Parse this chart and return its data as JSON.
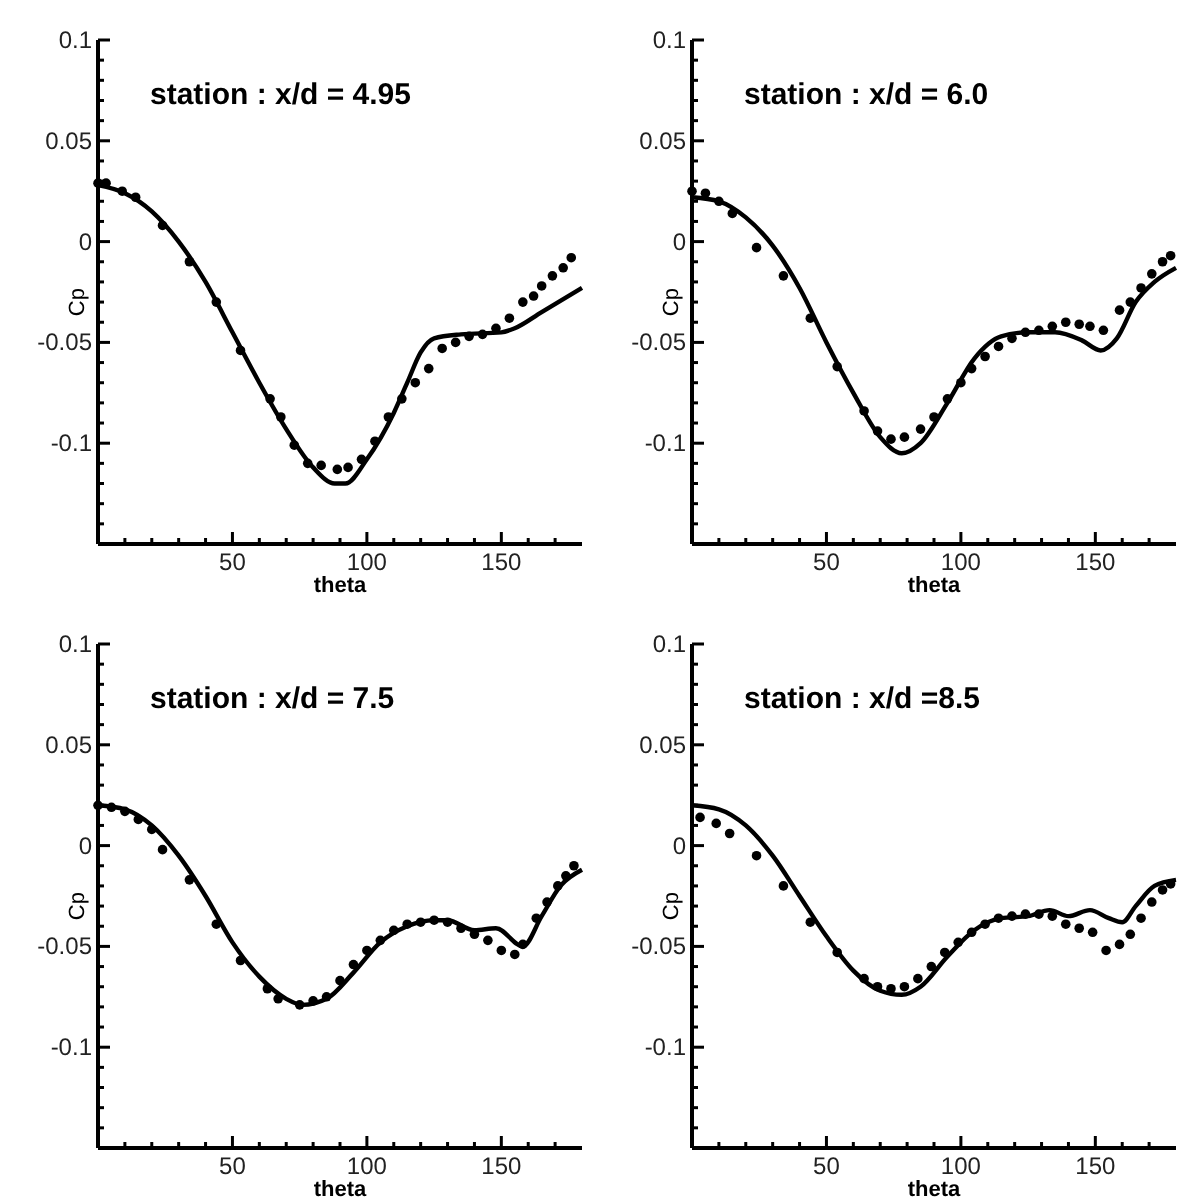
{
  "chart_data": [
    {
      "type": "line",
      "title": "station : x/d = 4.95",
      "xlabel": "theta",
      "ylabel": "Cp",
      "xlim": [
        0,
        180
      ],
      "ylim": [
        -0.15,
        0.1
      ],
      "xticks": [
        {
          "value": 10,
          "label": null
        },
        {
          "value": 20,
          "label": null
        },
        {
          "value": 30,
          "label": null
        },
        {
          "value": 40,
          "label": null
        },
        50,
        {
          "value": 60,
          "label": null
        },
        {
          "value": 70,
          "label": null
        },
        {
          "value": 80,
          "label": null
        },
        {
          "value": 90,
          "label": null
        },
        100,
        {
          "value": 110,
          "label": null
        },
        {
          "value": 120,
          "label": null
        },
        {
          "value": 130,
          "label": null
        },
        {
          "value": 140,
          "label": null
        },
        150,
        {
          "value": 160,
          "label": null
        },
        {
          "value": 170,
          "label": null
        }
      ],
      "yticks": [
        {
          "value": -0.14,
          "label": null
        },
        {
          "value": -0.13,
          "label": null
        },
        {
          "value": -0.12,
          "label": null
        },
        {
          "value": -0.11,
          "label": null
        },
        -0.1,
        {
          "value": -0.09,
          "label": null
        },
        {
          "value": -0.08,
          "label": null
        },
        {
          "value": -0.07,
          "label": null
        },
        {
          "value": -0.06,
          "label": null
        },
        -0.05,
        {
          "value": -0.04,
          "label": null
        },
        {
          "value": -0.03,
          "label": null
        },
        {
          "value": -0.02,
          "label": null
        },
        {
          "value": -0.01,
          "label": null
        },
        0,
        {
          "value": 0.01,
          "label": null
        },
        {
          "value": 0.02,
          "label": null
        },
        {
          "value": 0.03,
          "label": null
        },
        {
          "value": 0.04,
          "label": null
        },
        0.05,
        {
          "value": 0.06,
          "label": null
        },
        {
          "value": 0.07,
          "label": null
        },
        {
          "value": 0.08,
          "label": null
        },
        {
          "value": 0.09,
          "label": null
        },
        0.1
      ],
      "series": [
        {
          "color": "#000000",
          "line_style": "solid",
          "marker": "none",
          "x": [
            0,
            10,
            20,
            30,
            40,
            50,
            60,
            70,
            80,
            88,
            92,
            100,
            110,
            115,
            120,
            125,
            135,
            150,
            155,
            165,
            180
          ],
          "values": [
            0.028,
            0.024,
            0.015,
            0.0,
            -0.02,
            -0.045,
            -0.07,
            -0.093,
            -0.112,
            -0.12,
            -0.12,
            -0.108,
            -0.085,
            -0.07,
            -0.055,
            -0.048,
            -0.046,
            -0.045,
            -0.043,
            -0.035,
            -0.023
          ]
        },
        {
          "type": "scatter",
          "color": "#000000",
          "marker": "circle",
          "x": [
            0,
            3,
            9,
            14,
            24,
            34,
            44,
            53,
            64,
            68,
            73,
            78,
            83,
            89,
            93,
            98,
            103,
            108,
            113,
            118,
            123,
            128,
            133,
            138,
            143,
            148,
            153,
            158,
            162,
            165,
            169,
            173,
            176
          ],
          "values": [
            0.029,
            0.029,
            0.025,
            0.022,
            0.008,
            -0.01,
            -0.03,
            -0.054,
            -0.078,
            -0.087,
            -0.101,
            -0.11,
            -0.111,
            -0.113,
            -0.112,
            -0.108,
            -0.099,
            -0.087,
            -0.078,
            -0.07,
            -0.063,
            -0.053,
            -0.05,
            -0.047,
            -0.046,
            -0.043,
            -0.038,
            -0.03,
            -0.027,
            -0.022,
            -0.017,
            -0.013,
            -0.008
          ]
        }
      ]
    },
    {
      "type": "line",
      "title": "station : x/d = 6.0",
      "xlabel": "theta",
      "ylabel": "Cp",
      "xlim": [
        0,
        180
      ],
      "ylim": [
        -0.15,
        0.1
      ],
      "xticks": [
        {
          "value": 10,
          "label": null
        },
        {
          "value": 20,
          "label": null
        },
        {
          "value": 30,
          "label": null
        },
        {
          "value": 40,
          "label": null
        },
        50,
        {
          "value": 60,
          "label": null
        },
        {
          "value": 70,
          "label": null
        },
        {
          "value": 80,
          "label": null
        },
        {
          "value": 90,
          "label": null
        },
        100,
        {
          "value": 110,
          "label": null
        },
        {
          "value": 120,
          "label": null
        },
        {
          "value": 130,
          "label": null
        },
        {
          "value": 140,
          "label": null
        },
        150,
        {
          "value": 160,
          "label": null
        },
        {
          "value": 170,
          "label": null
        }
      ],
      "yticks": [
        {
          "value": -0.14,
          "label": null
        },
        {
          "value": -0.13,
          "label": null
        },
        {
          "value": -0.12,
          "label": null
        },
        {
          "value": -0.11,
          "label": null
        },
        -0.1,
        {
          "value": -0.09,
          "label": null
        },
        {
          "value": -0.08,
          "label": null
        },
        {
          "value": -0.07,
          "label": null
        },
        {
          "value": -0.06,
          "label": null
        },
        -0.05,
        {
          "value": -0.04,
          "label": null
        },
        {
          "value": -0.03,
          "label": null
        },
        {
          "value": -0.02,
          "label": null
        },
        {
          "value": -0.01,
          "label": null
        },
        0,
        {
          "value": 0.01,
          "label": null
        },
        {
          "value": 0.02,
          "label": null
        },
        {
          "value": 0.03,
          "label": null
        },
        {
          "value": 0.04,
          "label": null
        },
        0.05,
        {
          "value": 0.06,
          "label": null
        },
        {
          "value": 0.07,
          "label": null
        },
        {
          "value": 0.08,
          "label": null
        },
        {
          "value": 0.09,
          "label": null
        },
        0.1
      ],
      "series": [
        {
          "color": "#000000",
          "line_style": "solid",
          "marker": "none",
          "x": [
            0,
            10,
            20,
            30,
            40,
            50,
            60,
            70,
            78,
            85,
            95,
            105,
            115,
            125,
            135,
            145,
            152,
            158,
            165,
            172,
            180
          ],
          "values": [
            0.022,
            0.02,
            0.012,
            -0.002,
            -0.023,
            -0.05,
            -0.075,
            -0.097,
            -0.105,
            -0.1,
            -0.08,
            -0.058,
            -0.047,
            -0.045,
            -0.045,
            -0.049,
            -0.054,
            -0.048,
            -0.03,
            -0.02,
            -0.013
          ]
        },
        {
          "type": "scatter",
          "color": "#000000",
          "marker": "circle",
          "x": [
            0,
            5,
            10,
            15,
            24,
            34,
            44,
            54,
            64,
            69,
            74,
            79,
            85,
            90,
            95,
            100,
            104,
            109,
            114,
            119,
            124,
            129,
            134,
            139,
            144,
            148,
            153,
            159,
            163,
            167,
            171,
            175,
            178
          ],
          "values": [
            0.025,
            0.024,
            0.02,
            0.014,
            -0.003,
            -0.017,
            -0.038,
            -0.062,
            -0.084,
            -0.094,
            -0.098,
            -0.097,
            -0.093,
            -0.087,
            -0.078,
            -0.07,
            -0.063,
            -0.057,
            -0.052,
            -0.048,
            -0.045,
            -0.044,
            -0.042,
            -0.04,
            -0.041,
            -0.042,
            -0.044,
            -0.034,
            -0.03,
            -0.023,
            -0.016,
            -0.01,
            -0.007
          ]
        }
      ]
    },
    {
      "type": "line",
      "title": "station : x/d = 7.5",
      "xlabel": "theta",
      "ylabel": "Cp",
      "xlim": [
        0,
        180
      ],
      "ylim": [
        -0.15,
        0.1
      ],
      "xticks": [
        {
          "value": 10,
          "label": null
        },
        {
          "value": 20,
          "label": null
        },
        {
          "value": 30,
          "label": null
        },
        {
          "value": 40,
          "label": null
        },
        50,
        {
          "value": 60,
          "label": null
        },
        {
          "value": 70,
          "label": null
        },
        {
          "value": 80,
          "label": null
        },
        {
          "value": 90,
          "label": null
        },
        100,
        {
          "value": 110,
          "label": null
        },
        {
          "value": 120,
          "label": null
        },
        {
          "value": 130,
          "label": null
        },
        {
          "value": 140,
          "label": null
        },
        150,
        {
          "value": 160,
          "label": null
        },
        {
          "value": 170,
          "label": null
        }
      ],
      "yticks": [
        {
          "value": -0.14,
          "label": null
        },
        {
          "value": -0.13,
          "label": null
        },
        {
          "value": -0.12,
          "label": null
        },
        {
          "value": -0.11,
          "label": null
        },
        -0.1,
        {
          "value": -0.09,
          "label": null
        },
        {
          "value": -0.08,
          "label": null
        },
        {
          "value": -0.07,
          "label": null
        },
        {
          "value": -0.06,
          "label": null
        },
        -0.05,
        {
          "value": -0.04,
          "label": null
        },
        {
          "value": -0.03,
          "label": null
        },
        {
          "value": -0.02,
          "label": null
        },
        {
          "value": -0.01,
          "label": null
        },
        0,
        {
          "value": 0.01,
          "label": null
        },
        {
          "value": 0.02,
          "label": null
        },
        {
          "value": 0.03,
          "label": null
        },
        {
          "value": 0.04,
          "label": null
        },
        0.05,
        {
          "value": 0.06,
          "label": null
        },
        {
          "value": 0.07,
          "label": null
        },
        {
          "value": 0.08,
          "label": null
        },
        {
          "value": 0.09,
          "label": null
        },
        0.1
      ],
      "series": [
        {
          "color": "#000000",
          "line_style": "solid",
          "marker": "none",
          "x": [
            0,
            10,
            20,
            30,
            40,
            50,
            60,
            70,
            76,
            85,
            95,
            105,
            115,
            125,
            130,
            140,
            148,
            158,
            165,
            172,
            180
          ],
          "values": [
            0.02,
            0.018,
            0.01,
            -0.005,
            -0.025,
            -0.048,
            -0.065,
            -0.076,
            -0.079,
            -0.076,
            -0.063,
            -0.048,
            -0.04,
            -0.037,
            -0.037,
            -0.042,
            -0.041,
            -0.05,
            -0.035,
            -0.02,
            -0.012
          ]
        },
        {
          "type": "scatter",
          "color": "#000000",
          "marker": "circle",
          "x": [
            0,
            5,
            10,
            15,
            20,
            24,
            34,
            44,
            53,
            63,
            67,
            75,
            80,
            85,
            90,
            95,
            100,
            105,
            110,
            115,
            120,
            125,
            130,
            135,
            140,
            145,
            150,
            155,
            158,
            163,
            167,
            171,
            174,
            177
          ],
          "values": [
            0.02,
            0.019,
            0.017,
            0.013,
            0.008,
            -0.002,
            -0.017,
            -0.039,
            -0.057,
            -0.071,
            -0.076,
            -0.079,
            -0.077,
            -0.075,
            -0.067,
            -0.059,
            -0.052,
            -0.047,
            -0.042,
            -0.039,
            -0.038,
            -0.037,
            -0.038,
            -0.041,
            -0.044,
            -0.047,
            -0.052,
            -0.054,
            -0.049,
            -0.036,
            -0.028,
            -0.02,
            -0.015,
            -0.01
          ]
        }
      ]
    },
    {
      "type": "line",
      "title": "station : x/d =8.5",
      "xlabel": "theta",
      "ylabel": "Cp",
      "xlim": [
        0,
        180
      ],
      "ylim": [
        -0.15,
        0.1
      ],
      "xticks": [
        {
          "value": 10,
          "label": null
        },
        {
          "value": 20,
          "label": null
        },
        {
          "value": 30,
          "label": null
        },
        {
          "value": 40,
          "label": null
        },
        50,
        {
          "value": 60,
          "label": null
        },
        {
          "value": 70,
          "label": null
        },
        {
          "value": 80,
          "label": null
        },
        {
          "value": 90,
          "label": null
        },
        100,
        {
          "value": 110,
          "label": null
        },
        {
          "value": 120,
          "label": null
        },
        {
          "value": 130,
          "label": null
        },
        {
          "value": 140,
          "label": null
        },
        150,
        {
          "value": 160,
          "label": null
        },
        {
          "value": 170,
          "label": null
        }
      ],
      "yticks": [
        {
          "value": -0.14,
          "label": null
        },
        {
          "value": -0.13,
          "label": null
        },
        {
          "value": -0.12,
          "label": null
        },
        {
          "value": -0.11,
          "label": null
        },
        -0.1,
        {
          "value": -0.09,
          "label": null
        },
        {
          "value": -0.08,
          "label": null
        },
        {
          "value": -0.07,
          "label": null
        },
        {
          "value": -0.06,
          "label": null
        },
        -0.05,
        {
          "value": -0.04,
          "label": null
        },
        {
          "value": -0.03,
          "label": null
        },
        {
          "value": -0.02,
          "label": null
        },
        {
          "value": -0.01,
          "label": null
        },
        0,
        {
          "value": 0.01,
          "label": null
        },
        {
          "value": 0.02,
          "label": null
        },
        {
          "value": 0.03,
          "label": null
        },
        {
          "value": 0.04,
          "label": null
        },
        0.05,
        {
          "value": 0.06,
          "label": null
        },
        {
          "value": 0.07,
          "label": null
        },
        {
          "value": 0.08,
          "label": null
        },
        {
          "value": 0.09,
          "label": null
        },
        0.1
      ],
      "series": [
        {
          "color": "#000000",
          "line_style": "solid",
          "marker": "none",
          "x": [
            0,
            10,
            20,
            30,
            40,
            50,
            60,
            70,
            78,
            85,
            95,
            105,
            115,
            125,
            133,
            140,
            148,
            155,
            160,
            165,
            172,
            180
          ],
          "values": [
            0.02,
            0.018,
            0.01,
            -0.005,
            -0.025,
            -0.045,
            -0.062,
            -0.072,
            -0.074,
            -0.07,
            -0.055,
            -0.042,
            -0.036,
            -0.035,
            -0.032,
            -0.035,
            -0.032,
            -0.036,
            -0.038,
            -0.03,
            -0.02,
            -0.017
          ]
        },
        {
          "type": "scatter",
          "color": "#000000",
          "marker": "circle",
          "x": [
            3,
            9,
            14,
            24,
            34,
            44,
            54,
            64,
            69,
            74,
            79,
            84,
            89,
            94,
            99,
            104,
            109,
            114,
            119,
            124,
            129,
            134,
            139,
            144,
            149,
            154,
            159,
            163,
            167,
            171,
            175,
            178
          ],
          "values": [
            0.014,
            0.011,
            0.006,
            -0.005,
            -0.02,
            -0.038,
            -0.053,
            -0.066,
            -0.07,
            -0.071,
            -0.07,
            -0.066,
            -0.06,
            -0.053,
            -0.048,
            -0.043,
            -0.039,
            -0.036,
            -0.035,
            -0.034,
            -0.034,
            -0.035,
            -0.039,
            -0.041,
            -0.043,
            -0.052,
            -0.049,
            -0.044,
            -0.036,
            -0.028,
            -0.022,
            -0.019
          ]
        }
      ]
    }
  ]
}
